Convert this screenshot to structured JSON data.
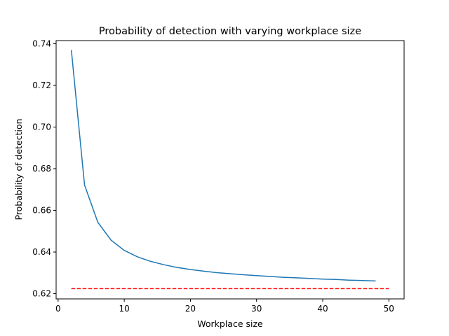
{
  "chart_data": {
    "type": "line",
    "title": "Probability of detection with varying workplace size",
    "xlabel": "Workplace size",
    "ylabel": "Probability of detection",
    "xlim": [
      -0.3,
      52.3
    ],
    "ylim": [
      0.6175,
      0.7415
    ],
    "xticks": [
      0,
      10,
      20,
      30,
      40,
      50
    ],
    "xtick_labels": [
      "0",
      "10",
      "20",
      "30",
      "40",
      "50"
    ],
    "yticks": [
      0.62,
      0.64,
      0.66,
      0.68,
      0.7,
      0.72,
      0.74
    ],
    "ytick_labels": [
      "0.62",
      "0.64",
      "0.66",
      "0.68",
      "0.70",
      "0.72",
      "0.74"
    ],
    "grid": false,
    "series": [
      {
        "color": "#1f77b4",
        "style": "solid",
        "x": [
          2,
          4,
          6,
          8,
          10,
          12,
          14,
          16,
          18,
          20,
          22,
          24,
          26,
          28,
          30,
          32,
          34,
          36,
          38,
          40,
          42,
          44,
          46,
          48
        ],
        "y": [
          0.737,
          0.6722,
          0.6543,
          0.6457,
          0.6408,
          0.6377,
          0.6355,
          0.6339,
          0.6326,
          0.6316,
          0.6308,
          0.6301,
          0.6296,
          0.6291,
          0.6287,
          0.6283,
          0.6279,
          0.6276,
          0.6273,
          0.627,
          0.6268,
          0.6265,
          0.6263,
          0.6261
        ]
      },
      {
        "color": "#ff0000",
        "style": "dashed",
        "x": [
          2,
          50
        ],
        "y": [
          0.6224,
          0.6224
        ]
      }
    ]
  }
}
